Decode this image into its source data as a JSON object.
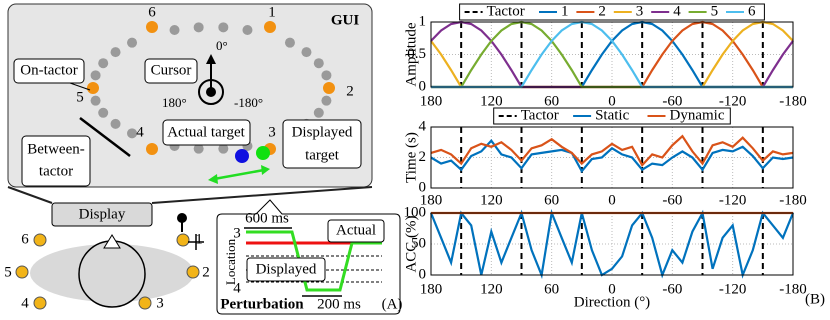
{
  "panel_a": {
    "gui_title": "GUI",
    "tactor_labels": [
      "1",
      "2",
      "3",
      "4",
      "5",
      "6"
    ],
    "angle_labels": [
      "0°",
      "180°",
      "-180°"
    ],
    "cursor": "Cursor",
    "on_tactor": "On-tactor",
    "between_tactor": [
      "Between-",
      "tactor"
    ],
    "actual_target": "Actual target",
    "displayed_target": [
      "Displayed",
      "target"
    ],
    "display": "Display",
    "device_tactor_labels": [
      "1",
      "2",
      "3",
      "4",
      "5",
      "6"
    ],
    "perturbation": {
      "duration": "600 ms",
      "actual": "Actual",
      "axis_label": "Location",
      "loc_top": "3",
      "loc_bottom": "4",
      "displayed": "Displayed",
      "title": "Perturbation",
      "transition": "200 ms"
    },
    "label": "(A)"
  },
  "panel_b_label": "(B)",
  "chart_data": [
    {
      "type": "line",
      "ylabel": "Amplitude",
      "legend": "top",
      "x": [
        180,
        170,
        160,
        150,
        140,
        130,
        120,
        110,
        100,
        90,
        80,
        70,
        60,
        50,
        40,
        30,
        20,
        10,
        0,
        -10,
        -20,
        -30,
        -40,
        -50,
        -60,
        -70,
        -80,
        -90,
        -100,
        -110,
        -120,
        -130,
        -140,
        -150,
        -160,
        -170,
        -180
      ],
      "xlim": [
        180,
        -180
      ],
      "xticks": [
        180,
        120,
        60,
        0,
        -60,
        -120,
        -180
      ],
      "ylim": [
        0,
        1
      ],
      "yticks": [
        0,
        0.5,
        1
      ],
      "grid": true,
      "vlines": {
        "name": "Tactor",
        "color": "#000000",
        "x": [
          150,
          90,
          30,
          -30,
          -90,
          -150
        ]
      },
      "series": [
        {
          "name": "1",
          "color": "#0072BD",
          "values": [
            0,
            0,
            0,
            0,
            0,
            0,
            0,
            0,
            0,
            0,
            0,
            0,
            0,
            0,
            0,
            0,
            0.26,
            0.5,
            0.71,
            0.87,
            0.97,
            1,
            0.97,
            0.87,
            0.71,
            0.5,
            0.26,
            0,
            0,
            0,
            0,
            0,
            0,
            0,
            0,
            0,
            0
          ]
        },
        {
          "name": "2",
          "color": "#D95319",
          "values": [
            0,
            0,
            0,
            0,
            0,
            0,
            0,
            0,
            0,
            0,
            0,
            0,
            0,
            0,
            0,
            0,
            0,
            0,
            0,
            0,
            0,
            0,
            0.26,
            0.5,
            0.71,
            0.87,
            0.97,
            1,
            0.97,
            0.87,
            0.71,
            0.5,
            0.26,
            0,
            0,
            0,
            0
          ]
        },
        {
          "name": "3",
          "color": "#EDB120",
          "values": [
            0.71,
            0.5,
            0.26,
            0,
            0,
            0,
            0,
            0,
            0,
            0,
            0,
            0,
            0,
            0,
            0,
            0,
            0,
            0,
            0,
            0,
            0,
            0,
            0,
            0,
            0,
            0,
            0,
            0,
            0.26,
            0.5,
            0.71,
            0.87,
            0.97,
            1,
            0.97,
            0.87,
            0.71
          ]
        },
        {
          "name": "4",
          "color": "#7E2F8E",
          "values": [
            0.71,
            0.87,
            0.97,
            1,
            0.97,
            0.87,
            0.71,
            0.5,
            0.26,
            0,
            0,
            0,
            0,
            0,
            0,
            0,
            0,
            0,
            0,
            0,
            0,
            0,
            0,
            0,
            0,
            0,
            0,
            0,
            0,
            0,
            0,
            0,
            0,
            0,
            0.26,
            0.5,
            0.71
          ]
        },
        {
          "name": "5",
          "color": "#77AC30",
          "values": [
            0,
            0,
            0,
            0,
            0.26,
            0.5,
            0.71,
            0.87,
            0.97,
            1,
            0.97,
            0.87,
            0.71,
            0.5,
            0.26,
            0,
            0,
            0,
            0,
            0,
            0,
            0,
            0,
            0,
            0,
            0,
            0,
            0,
            0,
            0,
            0,
            0,
            0,
            0,
            0,
            0,
            0
          ]
        },
        {
          "name": "6",
          "color": "#4DBEEE",
          "values": [
            0,
            0,
            0,
            0,
            0,
            0,
            0,
            0,
            0,
            0,
            0.26,
            0.5,
            0.71,
            0.87,
            0.97,
            1,
            0.97,
            0.87,
            0.71,
            0.5,
            0.26,
            0,
            0,
            0,
            0,
            0,
            0,
            0,
            0,
            0,
            0,
            0,
            0,
            0,
            0,
            0,
            0
          ]
        }
      ]
    },
    {
      "type": "line",
      "ylabel": "Time (s)",
      "legend": "top",
      "x": [
        180,
        170,
        160,
        150,
        140,
        130,
        120,
        110,
        100,
        90,
        80,
        70,
        60,
        50,
        40,
        30,
        20,
        10,
        0,
        -10,
        -20,
        -30,
        -40,
        -50,
        -60,
        -70,
        -80,
        -90,
        -100,
        -110,
        -120,
        -130,
        -140,
        -150,
        -160,
        -170,
        -180
      ],
      "xlim": [
        180,
        -180
      ],
      "xticks": [
        180,
        120,
        60,
        0,
        -60,
        -120,
        -180
      ],
      "ylim": [
        0,
        4
      ],
      "yticks": [
        0,
        2,
        4
      ],
      "grid": true,
      "vlines": {
        "name": "Tactor",
        "color": "#000000",
        "x": [
          150,
          90,
          30,
          -30,
          -90,
          -150
        ]
      },
      "series": [
        {
          "name": "Static",
          "color": "#0072BD",
          "values": [
            2.0,
            1.6,
            1.8,
            1.2,
            2.1,
            2.4,
            3.1,
            2.2,
            2.0,
            1.3,
            2.2,
            2.3,
            2.4,
            2.5,
            2.3,
            1.1,
            1.9,
            2.0,
            2.6,
            2.2,
            2.0,
            1.2,
            1.6,
            1.5,
            2.0,
            2.4,
            2.0,
            1.2,
            2.3,
            2.5,
            2.4,
            2.7,
            2.1,
            1.3,
            2.0,
            1.9,
            2.0
          ]
        },
        {
          "name": "Dynamic",
          "color": "#D95319",
          "values": [
            2.3,
            2.5,
            2.2,
            1.6,
            2.6,
            2.9,
            2.7,
            3.0,
            2.5,
            1.8,
            2.6,
            2.8,
            3.2,
            2.7,
            2.3,
            1.6,
            2.2,
            2.4,
            2.9,
            2.5,
            2.7,
            1.5,
            2.2,
            2.0,
            2.8,
            3.4,
            2.4,
            1.6,
            2.8,
            3.0,
            2.7,
            3.3,
            2.6,
            1.8,
            2.4,
            2.2,
            2.3
          ]
        }
      ]
    },
    {
      "type": "line",
      "ylabel": "ACC (%)",
      "xlabel": "Direction (°)",
      "x": [
        180,
        170,
        160,
        150,
        140,
        130,
        120,
        110,
        100,
        90,
        80,
        70,
        60,
        50,
        40,
        30,
        20,
        10,
        0,
        -10,
        -20,
        -30,
        -40,
        -50,
        -60,
        -70,
        -80,
        -90,
        -100,
        -110,
        -120,
        -130,
        -140,
        -150,
        -160,
        -170,
        -180
      ],
      "xlim": [
        180,
        -180
      ],
      "xticks": [
        180,
        120,
        60,
        0,
        -60,
        -120,
        -180
      ],
      "ylim": [
        0,
        100
      ],
      "yticks": [
        0,
        50,
        100
      ],
      "grid": true,
      "vlines": {
        "name": "Tactor",
        "color": "#000000",
        "x": [
          150,
          90,
          30,
          -30,
          -90,
          -150
        ]
      },
      "series": [
        {
          "name": "Static",
          "color": "#0072BD",
          "values": [
            100,
            60,
            20,
            100,
            80,
            0,
            70,
            20,
            60,
            100,
            40,
            0,
            100,
            60,
            20,
            100,
            40,
            0,
            10,
            30,
            80,
            100,
            60,
            0,
            40,
            20,
            70,
            100,
            10,
            60,
            80,
            0,
            40,
            100,
            80,
            60,
            100
          ]
        },
        {
          "name": "Dynamic",
          "color": "#D95319",
          "values": [
            100,
            100,
            100,
            100,
            100,
            100,
            100,
            100,
            100,
            100,
            100,
            100,
            100,
            100,
            100,
            100,
            100,
            100,
            100,
            100,
            100,
            100,
            100,
            100,
            100,
            100,
            100,
            100,
            100,
            100,
            100,
            100,
            100,
            100,
            100,
            100,
            100
          ]
        }
      ]
    }
  ]
}
